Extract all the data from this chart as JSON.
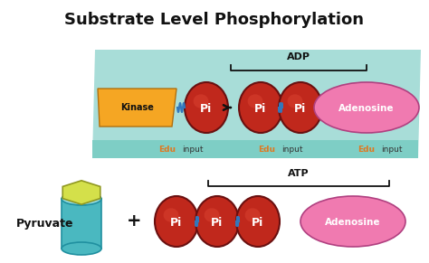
{
  "title": "Substrate Level Phosphorylation",
  "title_fontsize": 13,
  "title_fontweight": "bold",
  "bg_color": "#ffffff",
  "teal_color": "#a8ddd8",
  "strip_color": "#7ecec5",
  "kinase_color": "#f5a623",
  "pi_color": "#c0281c",
  "adenosine_color": "#f07ab0",
  "pyruvate_hex_color": "#d4e04a",
  "pyruvate_cyl_color": "#4ab8c0",
  "adp_label": "ADP",
  "atp_label": "ATP",
  "pi_label": "Pi",
  "edu_color": "#e07820",
  "pyruvate_label": "Pyruvate",
  "kinase_label": "Kinase",
  "adenosine_label": "Adenosine",
  "plus_label": "+"
}
